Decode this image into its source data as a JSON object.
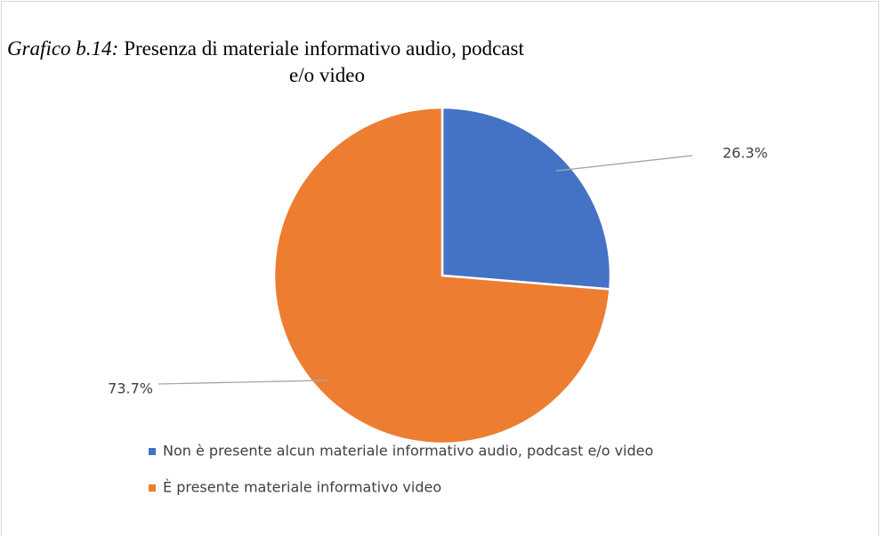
{
  "chart_data": {
    "type": "pie",
    "title_label": "Grafico b.14:",
    "title_lines": [
      "Presenza di materiale informativo audio, podcast",
      "e/o video"
    ],
    "categories": [
      "Non è presente alcun materiale informativo audio, podcast e/o video",
      "È presente materiale informativo video"
    ],
    "values": [
      26.3,
      73.7
    ],
    "value_labels": [
      "26.3%",
      "73.7%"
    ],
    "colors": [
      "#4472c4",
      "#ed7d31"
    ],
    "legend": "bottom"
  }
}
